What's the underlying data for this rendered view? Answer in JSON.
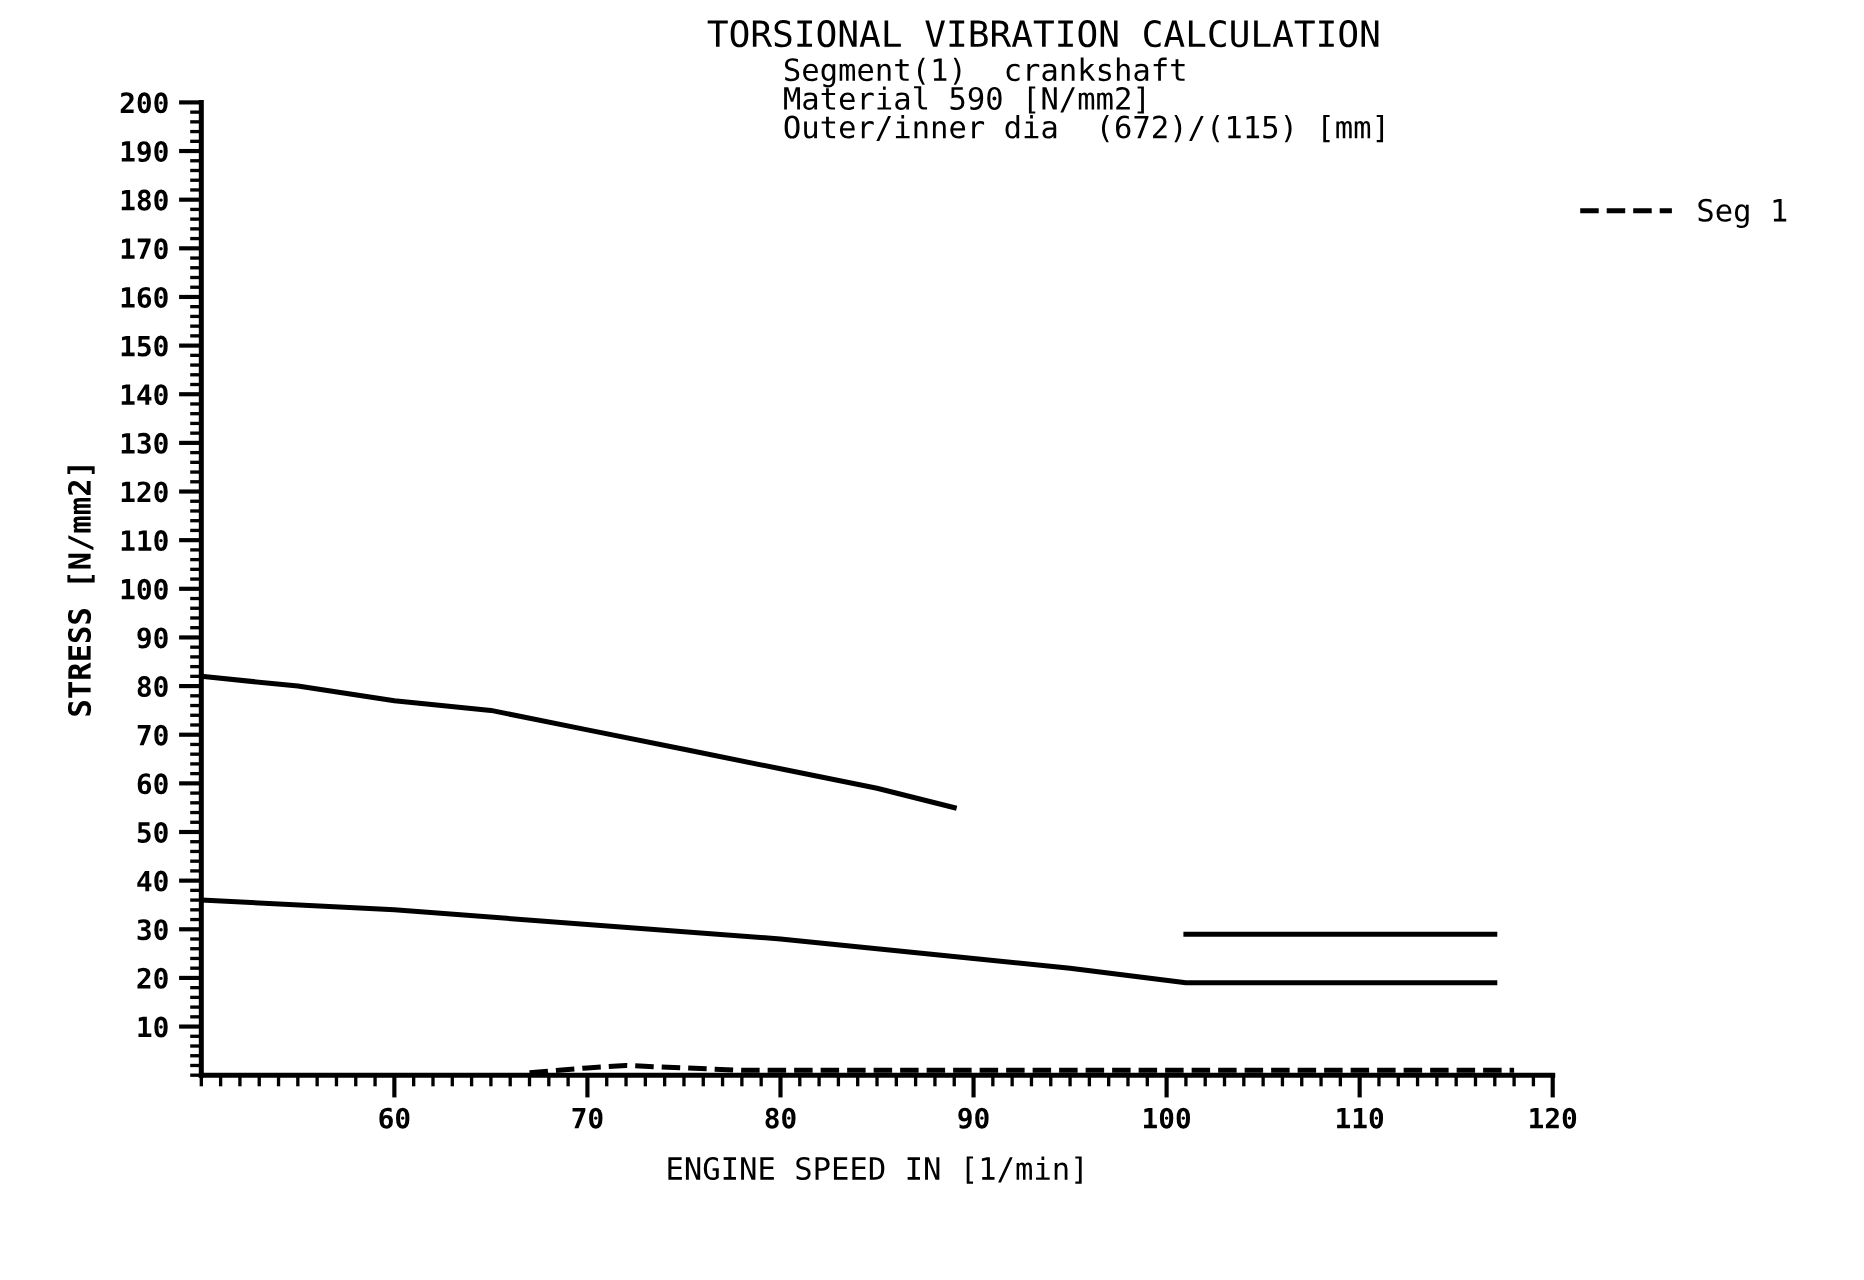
{
  "chart_data": {
    "type": "line",
    "title": "TORSIONAL VIBRATION CALCULATION",
    "subtitle": "Segment(1)  crankshaft\nMaterial 590 [N/mm2]\nOuter/inner dia  (672)/(115) [mm]",
    "xlabel": "ENGINE SPEED IN [1/min]",
    "ylabel": "STRESS [N/mm2]",
    "xlim": [
      50,
      120
    ],
    "ylim": [
      0,
      200
    ],
    "xticks": [
      60,
      70,
      80,
      90,
      100,
      110,
      120
    ],
    "yticks": [
      10,
      20,
      30,
      40,
      50,
      60,
      70,
      80,
      90,
      100,
      110,
      120,
      130,
      140,
      150,
      160,
      170,
      180,
      190,
      200
    ],
    "grid": false,
    "legend": "top right",
    "marker": "none",
    "series": [
      {
        "color": "#000000",
        "line_style": "solid",
        "x": [
          50,
          55,
          60,
          65,
          70,
          75,
          80,
          85,
          89
        ],
        "values": [
          82,
          80,
          77,
          75,
          71,
          67,
          63,
          59,
          55
        ]
      },
      {
        "color": "#000000",
        "line_style": "solid",
        "x": [
          50,
          60,
          70,
          80,
          90,
          95,
          101,
          117
        ],
        "values": [
          36,
          34,
          31,
          28,
          24,
          22,
          19,
          19
        ]
      },
      {
        "color": "#000000",
        "line_style": "solid",
        "x": [
          101,
          117
        ],
        "values": [
          29,
          29
        ]
      },
      {
        "name": "Seg 1",
        "color": "#000000",
        "line_style": "dashed",
        "x": [
          67,
          70,
          72,
          75,
          78,
          85,
          100,
          118
        ],
        "values": [
          0.5,
          1.5,
          2,
          1.5,
          1,
          1,
          1,
          1
        ]
      }
    ]
  }
}
